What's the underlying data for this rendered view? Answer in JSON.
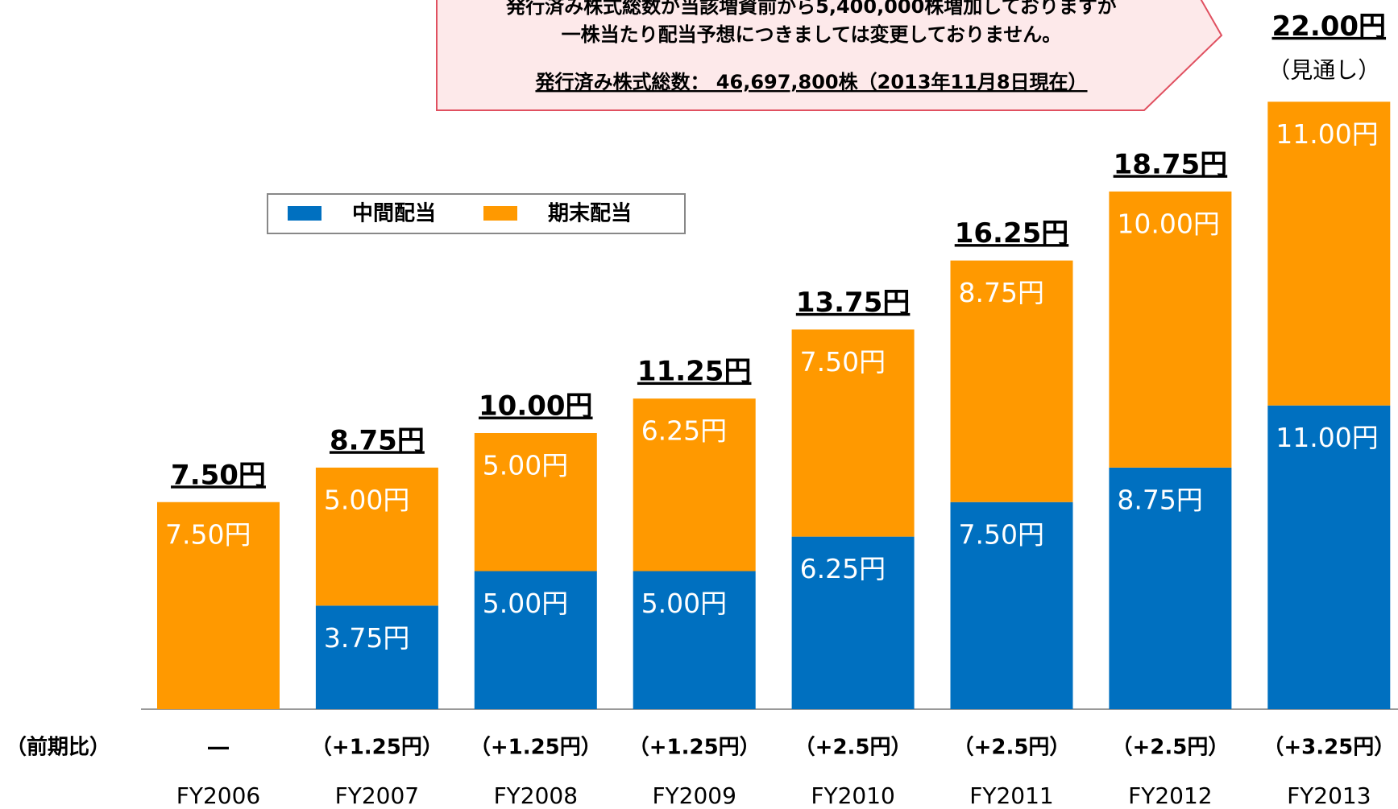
{
  "chart_data": {
    "type": "stacked_bar",
    "categories": [
      "FY2006",
      "FY2007",
      "FY2008",
      "FY2009",
      "FY2010",
      "FY2011",
      "FY2012",
      "FY2013"
    ],
    "series": [
      {
        "name": "中間配当",
        "color": "#0070c0",
        "values": [
          null,
          3.75,
          5.0,
          5.0,
          6.25,
          7.5,
          8.75,
          11.0
        ],
        "value_labels": [
          null,
          "3.75円",
          "5.00円",
          "5.00円",
          "6.25円",
          "7.50円",
          "8.75円",
          "11.00円"
        ]
      },
      {
        "name": "期末配当",
        "color": "#ff9900",
        "values": [
          7.5,
          5.0,
          5.0,
          6.25,
          7.5,
          8.75,
          10.0,
          11.0
        ],
        "value_labels": [
          "7.50円",
          "5.00円",
          "5.00円",
          "6.25円",
          "7.50円",
          "8.75円",
          "10.00円",
          "11.00円"
        ]
      }
    ],
    "totals": [
      7.5,
      8.75,
      10.0,
      11.25,
      13.75,
      16.25,
      18.75,
      22.0
    ],
    "total_labels": [
      "7.50円",
      "8.75円",
      "10.00円",
      "11.25円",
      "13.75円",
      "16.25円",
      "18.75円",
      "22.00円"
    ],
    "forecast_note": "（見通し）",
    "change_row_label": "（前期比）",
    "changes": [
      "―",
      "（+1.25円）",
      "（+1.25円）",
      "（+1.25円）",
      "（+2.5円）",
      "（+2.5円）",
      "（+2.5円）",
      "（+3.25円）"
    ],
    "annotation": [
      "発行済み株式総数が当該増資前から5,400,000株増加しておりますが",
      "一株当たり配当予想につきましては変更しておりません。",
      "発行済み株式総数： 46,697,800株（2013年11月8日現在）"
    ],
    "legend": "top-left"
  }
}
